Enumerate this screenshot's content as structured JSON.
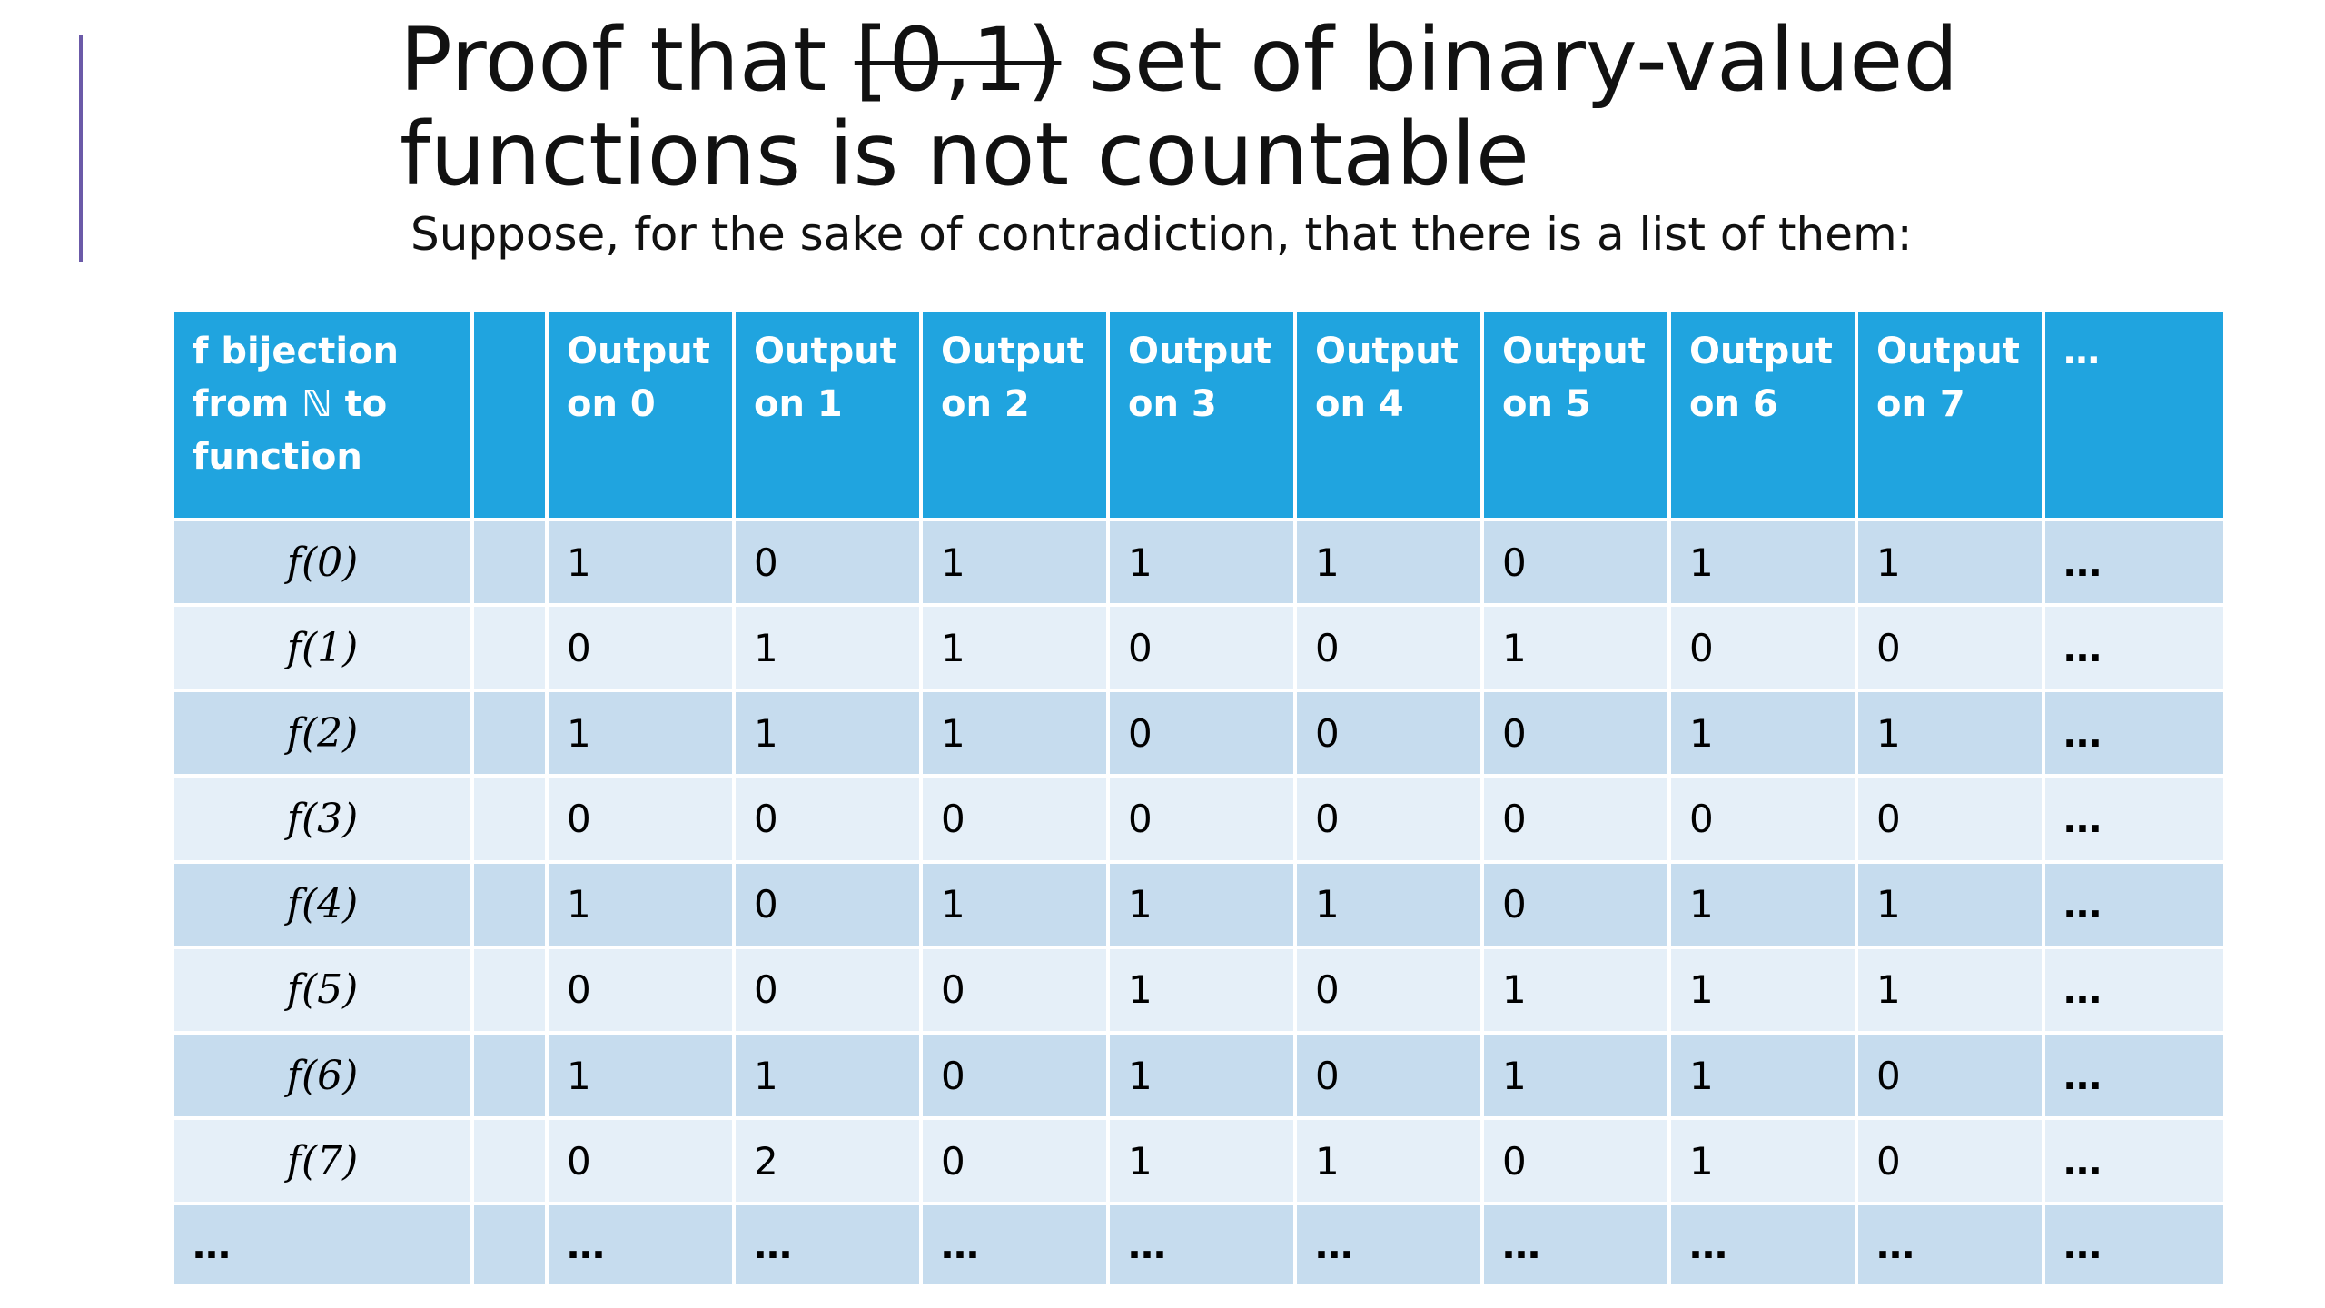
{
  "slide": {
    "title_prefix": "Proof that ",
    "title_strike": "[0,1)",
    "title_suffix": " set of binary-valued functions is not countable",
    "subtitle": "Suppose, for the sake of contradiction, that there is a list of them:"
  },
  "table": {
    "header": {
      "label": "f bijection from ℕ to function",
      "spacer": "",
      "outputs": [
        "Output on 0",
        "Output on 1",
        "Output on 2",
        "Output on 3",
        "Output on 4",
        "Output on 5",
        "Output on 6",
        "Output on 7"
      ],
      "more": "…"
    },
    "rows": [
      {
        "label": "f(0)",
        "values": [
          "1",
          "0",
          "1",
          "1",
          "1",
          "0",
          "1",
          "1"
        ],
        "more": "…"
      },
      {
        "label": "f(1)",
        "values": [
          "0",
          "1",
          "1",
          "0",
          "0",
          "1",
          "0",
          "0"
        ],
        "more": "…"
      },
      {
        "label": "f(2)",
        "values": [
          "1",
          "1",
          "1",
          "0",
          "0",
          "0",
          "1",
          "1"
        ],
        "more": "…"
      },
      {
        "label": "f(3)",
        "values": [
          "0",
          "0",
          "0",
          "0",
          "0",
          "0",
          "0",
          "0"
        ],
        "more": "…"
      },
      {
        "label": "f(4)",
        "values": [
          "1",
          "0",
          "1",
          "1",
          "1",
          "0",
          "1",
          "1"
        ],
        "more": "…"
      },
      {
        "label": "f(5)",
        "values": [
          "0",
          "0",
          "0",
          "1",
          "0",
          "1",
          "1",
          "1"
        ],
        "more": "…"
      },
      {
        "label": "f(6)",
        "values": [
          "1",
          "1",
          "0",
          "1",
          "0",
          "1",
          "1",
          "0"
        ],
        "more": "…"
      },
      {
        "label": "f(7)",
        "values": [
          "0",
          "2",
          "0",
          "1",
          "1",
          "0",
          "1",
          "0"
        ],
        "more": "…"
      }
    ],
    "last_row": {
      "label": "…",
      "values": [
        "…",
        "…",
        "…",
        "…",
        "…",
        "…",
        "…",
        "…"
      ],
      "more": "…"
    }
  },
  "colors": {
    "header_bg": "#20a4df",
    "row_dark": "#c6dcee",
    "row_light": "#e5eff8",
    "accent": "#6b5aa8"
  }
}
